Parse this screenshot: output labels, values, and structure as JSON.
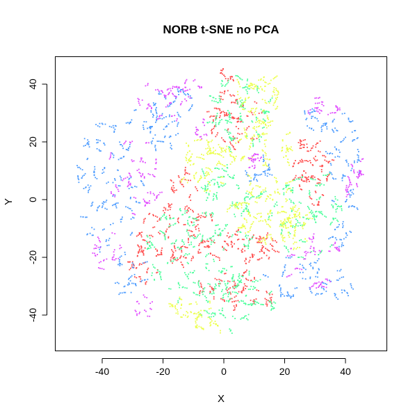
{
  "chart_data": {
    "type": "scatter",
    "title": "NORB t-SNE no PCA",
    "xlabel": "X",
    "ylabel": "Y",
    "xlim": [
      -55,
      53
    ],
    "ylim": [
      -51,
      47
    ],
    "xticks": [
      -40,
      -20,
      0,
      20,
      40
    ],
    "yticks": [
      -40,
      -20,
      0,
      20,
      40
    ],
    "xtick_labels": [
      "-40",
      "-20",
      "0",
      "20",
      "40"
    ],
    "ytick_labels": [
      "-40",
      "-20",
      "0",
      "20",
      "40"
    ],
    "grid": false,
    "legend": "none",
    "series": [
      {
        "color": "#ff4b4b",
        "clusters": [
          {
            "cx": -15,
            "cy": -12,
            "rx": 13,
            "ry": 10,
            "n": 200
          },
          {
            "cx": 6,
            "cy": -17,
            "rx": 12,
            "ry": 6,
            "n": 130
          },
          {
            "cx": -26,
            "cy": -22,
            "rx": 5,
            "ry": 8,
            "n": 60
          },
          {
            "cx": 3,
            "cy": 28,
            "rx": 9,
            "ry": 11,
            "n": 130
          },
          {
            "cx": 29,
            "cy": 10,
            "rx": 7,
            "ry": 13,
            "n": 140
          },
          {
            "cx": -13,
            "cy": 5,
            "rx": 5,
            "ry": 5,
            "n": 40
          },
          {
            "cx": 3,
            "cy": -31,
            "rx": 11,
            "ry": 6,
            "n": 110
          },
          {
            "cx": 15,
            "cy": -36,
            "rx": 2,
            "ry": 2,
            "n": 14
          },
          {
            "cx": 2,
            "cy": 43,
            "rx": 4,
            "ry": 2,
            "n": 20
          }
        ]
      },
      {
        "color": "#4bff9b",
        "clusters": [
          {
            "cx": -7,
            "cy": -18,
            "rx": 20,
            "ry": 18,
            "n": 300
          },
          {
            "cx": 5,
            "cy": 30,
            "rx": 11,
            "ry": 13,
            "n": 170
          },
          {
            "cx": 28,
            "cy": -6,
            "rx": 11,
            "ry": 16,
            "n": 170
          },
          {
            "cx": 4,
            "cy": -36,
            "rx": 13,
            "ry": 9,
            "n": 130
          },
          {
            "cx": -2,
            "cy": 5,
            "rx": 10,
            "ry": 8,
            "n": 80
          },
          {
            "cx": 10,
            "cy": -2,
            "rx": 8,
            "ry": 8,
            "n": 60
          }
        ]
      },
      {
        "color": "#ecff4b",
        "clusters": [
          {
            "cx": 14,
            "cy": -3,
            "rx": 12,
            "ry": 12,
            "n": 220
          },
          {
            "cx": -5,
            "cy": 12,
            "rx": 10,
            "ry": 9,
            "n": 160
          },
          {
            "cx": 14,
            "cy": 19,
            "rx": 9,
            "ry": 9,
            "n": 130
          },
          {
            "cx": 12,
            "cy": 36,
            "rx": 8,
            "ry": 7,
            "n": 100
          },
          {
            "cx": -10,
            "cy": -39,
            "rx": 8,
            "ry": 5,
            "n": 60
          },
          {
            "cx": -5,
            "cy": -44,
            "rx": 5,
            "ry": 3,
            "n": 30
          },
          {
            "cx": 24,
            "cy": -10,
            "rx": 6,
            "ry": 8,
            "n": 70
          }
        ]
      },
      {
        "color": "#4b9bff",
        "clusters": [
          {
            "cx": -38,
            "cy": 5,
            "rx": 11,
            "ry": 24,
            "n": 200
          },
          {
            "cx": -24,
            "cy": 25,
            "rx": 9,
            "ry": 10,
            "n": 80
          },
          {
            "cx": -17,
            "cy": 33,
            "rx": 7,
            "ry": 6,
            "n": 50
          },
          {
            "cx": 40,
            "cy": 12,
            "rx": 6,
            "ry": 16,
            "n": 90
          },
          {
            "cx": 33,
            "cy": 28,
            "rx": 7,
            "ry": 6,
            "n": 50
          },
          {
            "cx": 28,
            "cy": -27,
            "rx": 14,
            "ry": 8,
            "n": 110
          },
          {
            "cx": -31,
            "cy": -26,
            "rx": 6,
            "ry": 9,
            "n": 50
          },
          {
            "cx": 10,
            "cy": 10,
            "rx": 6,
            "ry": 4,
            "n": 40
          },
          {
            "cx": 38,
            "cy": -12,
            "rx": 4,
            "ry": 6,
            "n": 30
          }
        ]
      },
      {
        "color": "#e14bff",
        "clusters": [
          {
            "cx": -30,
            "cy": 8,
            "rx": 9,
            "ry": 14,
            "n": 100
          },
          {
            "cx": -21,
            "cy": 33,
            "rx": 9,
            "ry": 8,
            "n": 60
          },
          {
            "cx": -12,
            "cy": 38,
            "rx": 5,
            "ry": 4,
            "n": 30
          },
          {
            "cx": 30,
            "cy": -22,
            "rx": 9,
            "ry": 10,
            "n": 80
          },
          {
            "cx": 43,
            "cy": 6,
            "rx": 4,
            "ry": 10,
            "n": 50
          },
          {
            "cx": 33,
            "cy": 32,
            "rx": 6,
            "ry": 5,
            "n": 40
          },
          {
            "cx": -38,
            "cy": -18,
            "rx": 5,
            "ry": 8,
            "n": 40
          },
          {
            "cx": -26,
            "cy": -37,
            "rx": 4,
            "ry": 4,
            "n": 20
          },
          {
            "cx": -7,
            "cy": 25,
            "rx": 4,
            "ry": 4,
            "n": 20
          },
          {
            "cx": 10,
            "cy": 13,
            "rx": 5,
            "ry": 3,
            "n": 30
          }
        ]
      }
    ]
  }
}
